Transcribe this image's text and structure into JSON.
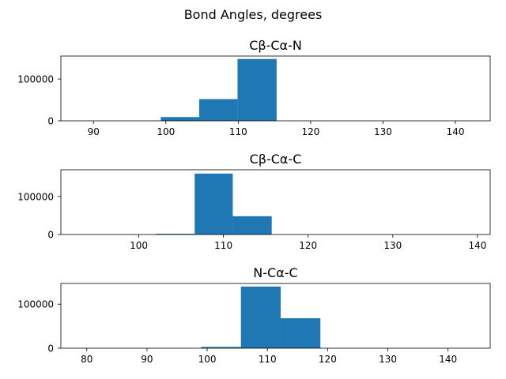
{
  "figure": {
    "suptitle": "Bond Angles, degrees"
  },
  "chart_data": [
    {
      "type": "bar",
      "title": "Cβ-Cα-N",
      "xlim": [
        85.5,
        144.8
      ],
      "ylim": [
        0,
        155000
      ],
      "xticks": [
        90,
        100,
        110,
        120,
        130,
        140
      ],
      "yticks": [
        0,
        100000
      ],
      "bins": [
        {
          "x0": 94.0,
          "x1": 99.3,
          "count": 0
        },
        {
          "x0": 99.3,
          "x1": 104.6,
          "count": 9000
        },
        {
          "x0": 104.6,
          "x1": 109.9,
          "count": 52000
        },
        {
          "x0": 109.9,
          "x1": 115.3,
          "count": 148000
        },
        {
          "x0": 115.3,
          "x1": 120.6,
          "count": 0
        }
      ]
    },
    {
      "type": "bar",
      "title": "Cβ-Cα-C",
      "xlim": [
        90.8,
        141.5
      ],
      "ylim": [
        0,
        170000
      ],
      "xticks": [
        100,
        110,
        120,
        130,
        140
      ],
      "yticks": [
        0,
        100000
      ],
      "bins": [
        {
          "x0": 102.0,
          "x1": 106.6,
          "count": 2000
        },
        {
          "x0": 106.6,
          "x1": 111.1,
          "count": 160000
        },
        {
          "x0": 111.1,
          "x1": 115.7,
          "count": 48000
        },
        {
          "x0": 115.7,
          "x1": 120.2,
          "count": 0
        }
      ]
    },
    {
      "type": "bar",
      "title": "N-Cα-C",
      "xlim": [
        75.7,
        147.0
      ],
      "ylim": [
        0,
        147000
      ],
      "xticks": [
        80,
        90,
        100,
        110,
        120,
        130,
        140
      ],
      "yticks": [
        0,
        100000
      ],
      "bins": [
        {
          "x0": 92.4,
          "x1": 99.0,
          "count": 0
        },
        {
          "x0": 99.0,
          "x1": 105.6,
          "count": 3000
        },
        {
          "x0": 105.6,
          "x1": 112.2,
          "count": 140000
        },
        {
          "x0": 112.2,
          "x1": 118.8,
          "count": 68000
        },
        {
          "x0": 118.8,
          "x1": 125.4,
          "count": 0
        }
      ]
    }
  ]
}
